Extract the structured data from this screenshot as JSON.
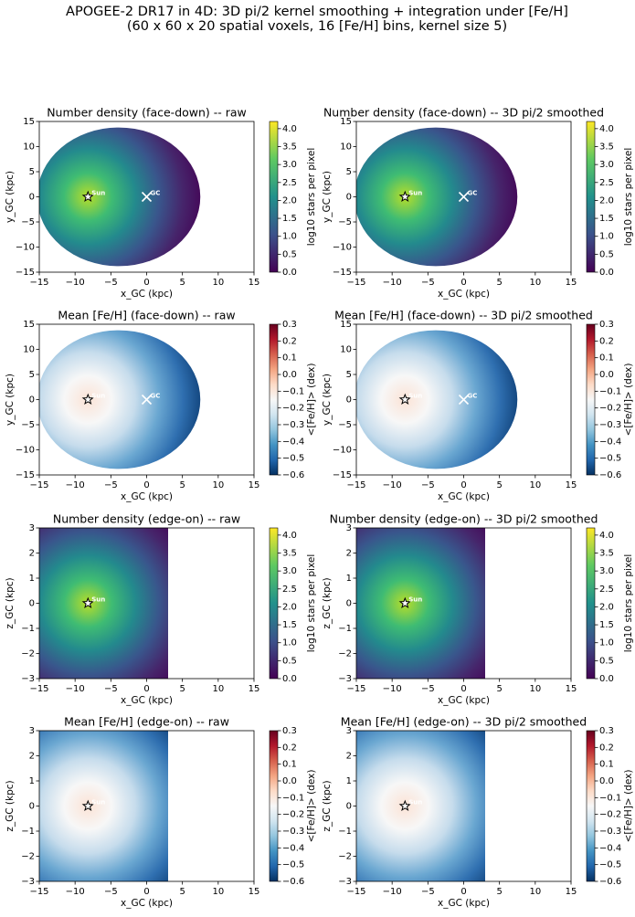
{
  "suptitle": [
    "APOGEE-2 DR17 in 4D: 3D pi/2 kernel smoothing + integration under [Fe/H]",
    "(60 x 60 x 20 spatial voxels, 16 [Fe/H] bins, kernel size 5)"
  ],
  "chart_data": [
    {
      "type": "heatmap",
      "title": "Number density (face-down) -- raw",
      "xlabel": "x_GC (kpc)",
      "ylabel": "y_GC (kpc)",
      "xlim": [
        -15,
        15
      ],
      "ylim": [
        -15,
        15
      ],
      "xticks": [
        {
          "value": -15,
          "label": "−15"
        },
        {
          "value": -10,
          "label": "−10"
        },
        {
          "value": -5,
          "label": "−5"
        },
        0,
        5,
        10,
        15
      ],
      "yticks": [
        {
          "value": -15,
          "label": "−15"
        },
        {
          "value": -10,
          "label": "−10"
        },
        {
          "value": -5,
          "label": "−5"
        },
        0,
        5,
        10,
        15
      ],
      "colorbar": {
        "label": "log10 stars per pixel",
        "cmap": "viridis",
        "lim": [
          0,
          4.2
        ],
        "ticks": [
          {
            "value": 0,
            "label": "0.0"
          },
          0.5,
          {
            "value": 1,
            "label": "1.0"
          },
          1.5,
          {
            "value": 2,
            "label": "2.0"
          },
          2.5,
          {
            "value": 3,
            "label": "3.0"
          },
          3.5,
          {
            "value": 4,
            "label": "4.0"
          }
        ]
      },
      "markers": [
        {
          "name": "Sun",
          "x": -8.2,
          "y": 0
        },
        {
          "name": "GC",
          "x": 0,
          "y": 0
        }
      ]
    },
    {
      "type": "heatmap",
      "title": "Number density (face-down) -- 3D pi/2 smoothed",
      "xlabel": "x_GC (kpc)",
      "ylabel": "y_GC (kpc)",
      "xlim": [
        -15,
        15
      ],
      "ylim": [
        -15,
        15
      ],
      "xticks": [
        {
          "value": -15,
          "label": "−15"
        },
        {
          "value": -10,
          "label": "−10"
        },
        {
          "value": -5,
          "label": "−5"
        },
        0,
        5,
        10,
        15
      ],
      "yticks": [
        {
          "value": -15,
          "label": "−15"
        },
        {
          "value": -10,
          "label": "−10"
        },
        {
          "value": -5,
          "label": "−5"
        },
        0,
        5,
        10,
        15
      ],
      "colorbar": {
        "label": "log10 stars per pixel",
        "cmap": "viridis",
        "lim": [
          0,
          4.2
        ],
        "ticks": [
          {
            "value": 0,
            "label": "0.0"
          },
          0.5,
          {
            "value": 1,
            "label": "1.0"
          },
          1.5,
          {
            "value": 2,
            "label": "2.0"
          },
          2.5,
          {
            "value": 3,
            "label": "3.0"
          },
          3.5,
          {
            "value": 4,
            "label": "4.0"
          }
        ]
      },
      "markers": [
        {
          "name": "Sun",
          "x": -8.2,
          "y": 0
        },
        {
          "name": "GC",
          "x": 0,
          "y": 0
        }
      ]
    },
    {
      "type": "heatmap",
      "title": "Mean [Fe/H] (face-down) -- raw",
      "xlabel": "x_GC (kpc)",
      "ylabel": "y_GC (kpc)",
      "xlim": [
        -15,
        15
      ],
      "ylim": [
        -15,
        15
      ],
      "xticks": [
        {
          "value": -15,
          "label": "−15"
        },
        {
          "value": -10,
          "label": "−10"
        },
        {
          "value": -5,
          "label": "−5"
        },
        0,
        5,
        10,
        15
      ],
      "yticks": [
        {
          "value": -15,
          "label": "−15"
        },
        {
          "value": -10,
          "label": "−10"
        },
        {
          "value": -5,
          "label": "−5"
        },
        0,
        5,
        10,
        15
      ],
      "colorbar": {
        "label": "<[Fe/H]> (dex)",
        "cmap": "RdBu_r",
        "lim": [
          -0.6,
          0.3
        ],
        "ticks": [
          {
            "value": -0.6,
            "label": "−0.6"
          },
          {
            "value": -0.5,
            "label": "−0.5"
          },
          {
            "value": -0.4,
            "label": "−0.4"
          },
          {
            "value": -0.3,
            "label": "−0.3"
          },
          {
            "value": -0.2,
            "label": "−0.2"
          },
          {
            "value": -0.1,
            "label": "−0.1"
          },
          {
            "value": 0,
            "label": "0.0"
          },
          0.1,
          0.2,
          0.3
        ]
      },
      "markers": [
        {
          "name": "Sun",
          "x": -8.2,
          "y": 0
        },
        {
          "name": "GC",
          "x": 0,
          "y": 0
        }
      ]
    },
    {
      "type": "heatmap",
      "title": "Mean [Fe/H] (face-down) -- 3D pi/2 smoothed",
      "xlabel": "x_GC (kpc)",
      "ylabel": "y_GC (kpc)",
      "xlim": [
        -15,
        15
      ],
      "ylim": [
        -15,
        15
      ],
      "xticks": [
        {
          "value": -15,
          "label": "−15"
        },
        {
          "value": -10,
          "label": "−10"
        },
        {
          "value": -5,
          "label": "−5"
        },
        0,
        5,
        10,
        15
      ],
      "yticks": [
        {
          "value": -15,
          "label": "−15"
        },
        {
          "value": -10,
          "label": "−10"
        },
        {
          "value": -5,
          "label": "−5"
        },
        0,
        5,
        10,
        15
      ],
      "colorbar": {
        "label": "<[Fe/H]> (dex)",
        "cmap": "RdBu_r",
        "lim": [
          -0.6,
          0.3
        ],
        "ticks": [
          {
            "value": -0.6,
            "label": "−0.6"
          },
          {
            "value": -0.5,
            "label": "−0.5"
          },
          {
            "value": -0.4,
            "label": "−0.4"
          },
          {
            "value": -0.3,
            "label": "−0.3"
          },
          {
            "value": -0.2,
            "label": "−0.2"
          },
          {
            "value": -0.1,
            "label": "−0.1"
          },
          {
            "value": 0,
            "label": "0.0"
          },
          0.1,
          0.2,
          0.3
        ]
      },
      "markers": [
        {
          "name": "Sun",
          "x": -8.2,
          "y": 0
        },
        {
          "name": "GC",
          "x": 0,
          "y": 0
        }
      ]
    },
    {
      "type": "heatmap",
      "title": "Number density (edge-on) -- raw",
      "xlabel": "x_GC (kpc)",
      "ylabel": "z_GC (kpc)",
      "xlim": [
        -15,
        15
      ],
      "ylim": [
        -3,
        3
      ],
      "xticks": [
        {
          "value": -15,
          "label": "−15"
        },
        {
          "value": -10,
          "label": "−10"
        },
        {
          "value": -5,
          "label": "−5"
        },
        0,
        5,
        10,
        15
      ],
      "yticks": [
        {
          "value": -3,
          "label": "−3"
        },
        {
          "value": -2,
          "label": "−2"
        },
        {
          "value": -1,
          "label": "−1"
        },
        0,
        1,
        2,
        3
      ],
      "colorbar": {
        "label": "log10 stars per pixel",
        "cmap": "viridis",
        "lim": [
          0,
          4.2
        ],
        "ticks": [
          {
            "value": 0,
            "label": "0.0"
          },
          0.5,
          {
            "value": 1,
            "label": "1.0"
          },
          1.5,
          {
            "value": 2,
            "label": "2.0"
          },
          2.5,
          {
            "value": 3,
            "label": "3.0"
          },
          3.5,
          {
            "value": 4,
            "label": "4.0"
          }
        ]
      },
      "markers": [
        {
          "name": "Sun",
          "x": -8.2,
          "y": 0
        }
      ]
    },
    {
      "type": "heatmap",
      "title": "Number density (edge-on) -- 3D pi/2 smoothed",
      "xlabel": "x_GC (kpc)",
      "ylabel": "z_GC (kpc)",
      "xlim": [
        -15,
        15
      ],
      "ylim": [
        -3,
        3
      ],
      "xticks": [
        {
          "value": -15,
          "label": "−15"
        },
        {
          "value": -10,
          "label": "−10"
        },
        {
          "value": -5,
          "label": "−5"
        },
        0,
        5,
        10,
        15
      ],
      "yticks": [
        {
          "value": -3,
          "label": "−3"
        },
        {
          "value": -2,
          "label": "−2"
        },
        {
          "value": -1,
          "label": "−1"
        },
        0,
        1,
        2,
        3
      ],
      "colorbar": {
        "label": "log10 stars per pixel",
        "cmap": "viridis",
        "lim": [
          0,
          4.2
        ],
        "ticks": [
          {
            "value": 0,
            "label": "0.0"
          },
          0.5,
          {
            "value": 1,
            "label": "1.0"
          },
          1.5,
          {
            "value": 2,
            "label": "2.0"
          },
          2.5,
          {
            "value": 3,
            "label": "3.0"
          },
          3.5,
          {
            "value": 4,
            "label": "4.0"
          }
        ]
      },
      "markers": [
        {
          "name": "Sun",
          "x": -8.2,
          "y": 0
        }
      ]
    },
    {
      "type": "heatmap",
      "title": "Mean [Fe/H] (edge-on) -- raw",
      "xlabel": "x_GC (kpc)",
      "ylabel": "z_GC (kpc)",
      "xlim": [
        -15,
        15
      ],
      "ylim": [
        -3,
        3
      ],
      "xticks": [
        {
          "value": -15,
          "label": "−15"
        },
        {
          "value": -10,
          "label": "−10"
        },
        {
          "value": -5,
          "label": "−5"
        },
        0,
        5,
        10,
        15
      ],
      "yticks": [
        {
          "value": -3,
          "label": "−3"
        },
        {
          "value": -2,
          "label": "−2"
        },
        {
          "value": -1,
          "label": "−1"
        },
        0,
        1,
        2,
        3
      ],
      "colorbar": {
        "label": "<[Fe/H]> (dex)",
        "cmap": "RdBu_r",
        "lim": [
          -0.6,
          0.3
        ],
        "ticks": [
          {
            "value": -0.6,
            "label": "−0.6"
          },
          {
            "value": -0.5,
            "label": "−0.5"
          },
          {
            "value": -0.4,
            "label": "−0.4"
          },
          {
            "value": -0.3,
            "label": "−0.3"
          },
          {
            "value": -0.2,
            "label": "−0.2"
          },
          {
            "value": -0.1,
            "label": "−0.1"
          },
          {
            "value": 0,
            "label": "0.0"
          },
          0.1,
          0.2,
          0.3
        ]
      },
      "markers": [
        {
          "name": "Sun",
          "x": -8.2,
          "y": 0
        }
      ]
    },
    {
      "type": "heatmap",
      "title": "Mean [Fe/H] (edge-on) -- 3D pi/2 smoothed",
      "xlabel": "x_GC (kpc)",
      "ylabel": "z_GC (kpc)",
      "xlim": [
        -15,
        15
      ],
      "ylim": [
        -3,
        3
      ],
      "xticks": [
        {
          "value": -15,
          "label": "−15"
        },
        {
          "value": -10,
          "label": "−10"
        },
        {
          "value": -5,
          "label": "−5"
        },
        0,
        5,
        10,
        15
      ],
      "yticks": [
        {
          "value": -3,
          "label": "−3"
        },
        {
          "value": -2,
          "label": "−2"
        },
        {
          "value": -1,
          "label": "−1"
        },
        0,
        1,
        2,
        3
      ],
      "colorbar": {
        "label": "<[Fe/H]> (dex)",
        "cmap": "RdBu_r",
        "lim": [
          -0.6,
          0.3
        ],
        "ticks": [
          {
            "value": -0.6,
            "label": "−0.6"
          },
          {
            "value": -0.5,
            "label": "−0.5"
          },
          {
            "value": -0.4,
            "label": "−0.4"
          },
          {
            "value": -0.3,
            "label": "−0.3"
          },
          {
            "value": -0.2,
            "label": "−0.2"
          },
          {
            "value": -0.1,
            "label": "−0.1"
          },
          {
            "value": 0,
            "label": "0.0"
          },
          0.1,
          0.2,
          0.3
        ]
      },
      "markers": [
        {
          "name": "Sun",
          "x": -8.2,
          "y": 0
        }
      ]
    }
  ]
}
